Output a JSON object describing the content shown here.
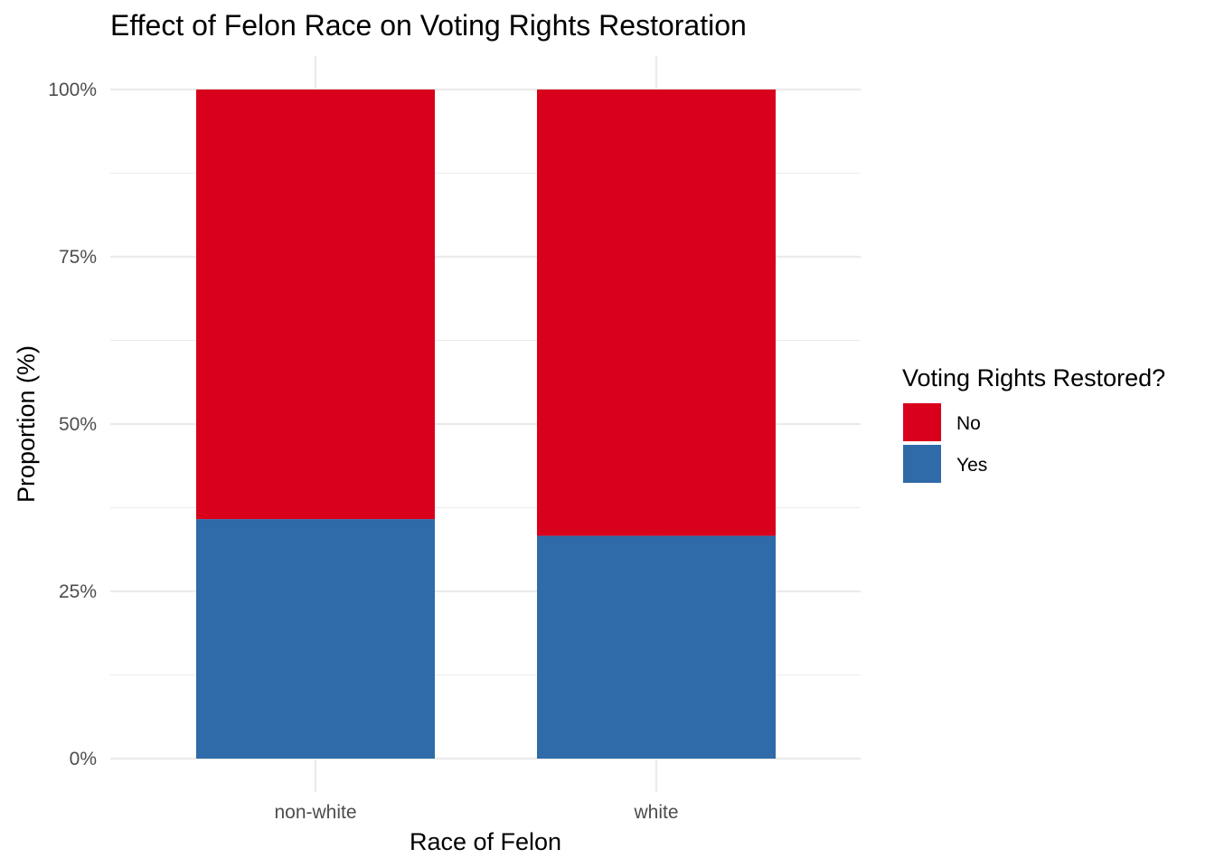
{
  "chart_data": {
    "type": "bar",
    "stacked": true,
    "title": "Effect of Felon Race on Voting Rights Restoration",
    "xlabel": "Race of Felon",
    "ylabel": "Proportion (%)",
    "categories": [
      "non-white",
      "white"
    ],
    "ylim": [
      0,
      1
    ],
    "yticks": [
      0,
      0.25,
      0.5,
      0.75,
      1
    ],
    "ytick_labels": [
      "0%",
      "25%",
      "50%",
      "75%",
      "100%"
    ],
    "grid": true,
    "legend": {
      "title": "Voting Rights Restored?",
      "position": "right"
    },
    "series": [
      {
        "name": "Yes",
        "color": "#2e6ba8",
        "values": [
          0.358,
          0.333
        ]
      },
      {
        "name": "No",
        "color": "#d9001b",
        "values": [
          0.642,
          0.667
        ]
      }
    ],
    "legend_order": [
      "No",
      "Yes"
    ]
  }
}
